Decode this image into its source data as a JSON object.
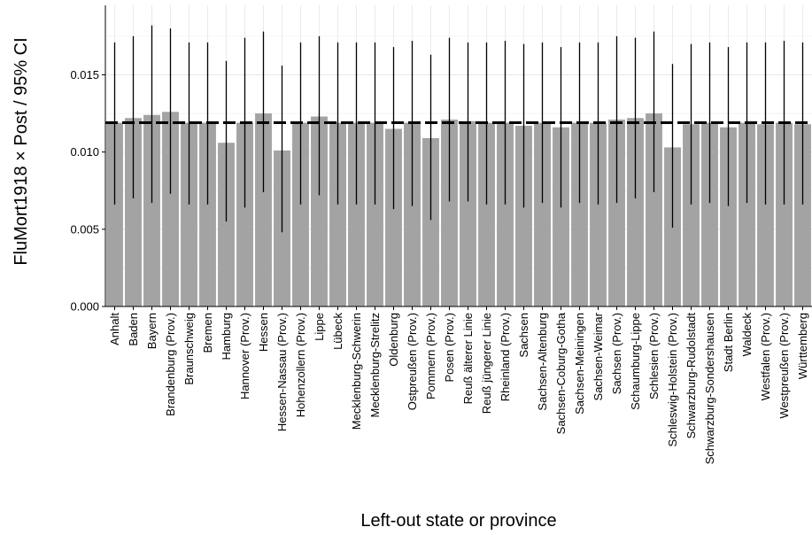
{
  "chart_data": {
    "type": "bar",
    "xlabel": "Left-out state or province",
    "ylabel": "FluMort1918 × Post / 95% CI",
    "ylim": [
      0,
      0.0195
    ],
    "yticks": [
      0.0,
      0.005,
      0.01,
      0.015
    ],
    "ytick_labels": [
      "0.000",
      "0.005",
      "0.010",
      "0.015"
    ],
    "grid": true,
    "reference_line": 0.0119,
    "categories": [
      "Anhalt",
      "Baden",
      "Bayern",
      "Brandenburg (Prov.)",
      "Braunschweig",
      "Bremen",
      "Hamburg",
      "Hannover (Prov.)",
      "Hessen",
      "Hessen-Nassau (Prov.)",
      "Hohenzollern (Prov.)",
      "Lippe",
      "Lübeck",
      "Mecklenburg-Schwerin",
      "Mecklenburg-Strelitz",
      "Oldenburg",
      "Ostpreußen (Prov.)",
      "Pommern (Prov.)",
      "Posen (Prov.)",
      "Reuß älterer Linie",
      "Reuß jüngerer Linie",
      "Rheinland (Prov.)",
      "Sachsen",
      "Sachsen-Altenburg",
      "Sachsen-Coburg-Gotha",
      "Sachsen-Meiningen",
      "Sachsen-Weimar",
      "Sachsen (Prov.)",
      "Schaumburg-Lippe",
      "Schlesien (Prov.)",
      "Schleswig-Holstein (Prov.)",
      "Schwarzburg-Rudolstadt",
      "Schwarzburg-Sondershausen",
      "Stadt Berlin",
      "Waldeck",
      "Westfalen (Prov.)",
      "Westpreußen (Prov.)",
      "Württemberg"
    ],
    "values": [
      0.0119,
      0.0122,
      0.0124,
      0.0126,
      0.0119,
      0.0119,
      0.0106,
      0.0119,
      0.0125,
      0.0101,
      0.0119,
      0.0123,
      0.0119,
      0.0119,
      0.0119,
      0.0115,
      0.0119,
      0.0109,
      0.0121,
      0.012,
      0.0119,
      0.0119,
      0.0117,
      0.0119,
      0.0116,
      0.0119,
      0.0119,
      0.0121,
      0.0122,
      0.0125,
      0.0103,
      0.0118,
      0.0119,
      0.0116,
      0.0119,
      0.0118,
      0.0119,
      0.0118
    ],
    "ci_low": [
      0.0066,
      0.007,
      0.0067,
      0.0073,
      0.0066,
      0.0066,
      0.0055,
      0.0064,
      0.0074,
      0.0048,
      0.0066,
      0.0072,
      0.0066,
      0.0066,
      0.0066,
      0.0063,
      0.0065,
      0.0056,
      0.0068,
      0.0068,
      0.0066,
      0.0066,
      0.0064,
      0.0067,
      0.0064,
      0.0067,
      0.0066,
      0.0067,
      0.007,
      0.0074,
      0.0051,
      0.0066,
      0.0067,
      0.0065,
      0.0067,
      0.0066,
      0.0066,
      0.0066
    ],
    "ci_high": [
      0.0171,
      0.0175,
      0.0182,
      0.018,
      0.0171,
      0.0171,
      0.0159,
      0.0174,
      0.0178,
      0.0156,
      0.0171,
      0.0175,
      0.0171,
      0.0171,
      0.0171,
      0.0168,
      0.0172,
      0.0163,
      0.0174,
      0.0171,
      0.0171,
      0.0172,
      0.017,
      0.0171,
      0.0168,
      0.0171,
      0.0171,
      0.0175,
      0.0174,
      0.0178,
      0.0157,
      0.017,
      0.0171,
      0.0168,
      0.0171,
      0.0171,
      0.0172,
      0.0171
    ]
  },
  "colors": {
    "bar": "#a3a3a3",
    "errorbar": "#000000",
    "reference_line": "#000000",
    "grid": "#ebebeb",
    "axis": "#000000"
  }
}
